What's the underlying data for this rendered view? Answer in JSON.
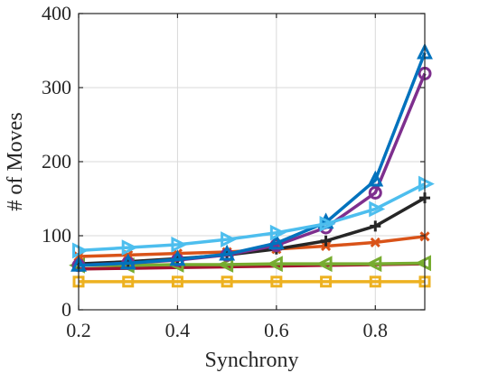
{
  "chart_data": {
    "type": "line",
    "xlabel": "Synchrony",
    "ylabel": "# of Moves",
    "xlim": [
      0.2,
      0.9
    ],
    "ylim": [
      0,
      400
    ],
    "xticks": [
      "0.2",
      "0.4",
      "0.6",
      "0.8"
    ],
    "xtick_values": [
      0.2,
      0.4,
      0.6,
      0.8
    ],
    "yticks": [
      "0",
      "100",
      "200",
      "300",
      "400"
    ],
    "ytick_values": [
      0,
      100,
      200,
      300,
      400
    ],
    "grid": true,
    "x": [
      0.2,
      0.3,
      0.4,
      0.5,
      0.6,
      0.7,
      0.8,
      0.9
    ],
    "series": [
      {
        "color": "#EDB120",
        "marker": "square",
        "values": [
          38,
          38,
          38,
          38,
          38,
          38,
          38,
          38
        ]
      },
      {
        "color": "#A2142F",
        "marker": "none",
        "values": [
          55,
          56,
          57,
          58,
          59,
          60,
          61,
          62
        ]
      },
      {
        "color": "#77AC30",
        "marker": "triangle-left",
        "values": [
          60,
          60,
          61,
          61,
          62,
          62,
          62,
          63
        ]
      },
      {
        "color": "#D95319",
        "marker": "x",
        "values": [
          72,
          74,
          76,
          78,
          82,
          86,
          91,
          99
        ]
      },
      {
        "color": "#262626",
        "marker": "plus",
        "values": [
          62,
          65,
          69,
          74,
          82,
          93,
          113,
          151
        ]
      },
      {
        "color": "#7E2F8E",
        "marker": "circle",
        "values": [
          60,
          63,
          67,
          74,
          87,
          111,
          158,
          319
        ]
      },
      {
        "color": "#0072BD",
        "marker": "triangle-up",
        "values": [
          60,
          63,
          68,
          75,
          90,
          118,
          175,
          347
        ]
      },
      {
        "color": "#4DBEEE",
        "marker": "triangle-right",
        "values": [
          80,
          84,
          88,
          95,
          104,
          116,
          136,
          170
        ]
      }
    ]
  }
}
